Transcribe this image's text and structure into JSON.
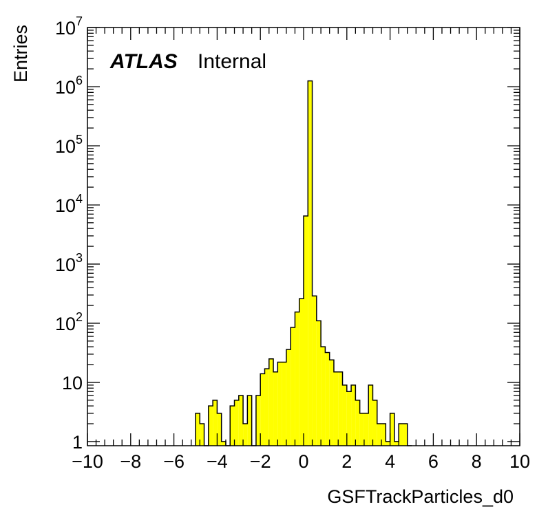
{
  "chart_data": {
    "type": "bar",
    "title": "",
    "label_bold": "ATLAS",
    "label_normal": "Internal",
    "xlabel": "GSFTrackParticles_d0",
    "ylabel": "Entries",
    "xlim": [
      -10,
      10
    ],
    "ylim": [
      0.85,
      10000000
    ],
    "y_scale": "log",
    "grid": false,
    "bin_width": 0.2,
    "fill_color": "#ffff00",
    "line_color": "#000000",
    "x_tick_labels": [
      "−10",
      "−8",
      "−6",
      "−4",
      "−2",
      "0",
      "2",
      "4",
      "6",
      "8",
      "10"
    ],
    "y_tick_labels": [
      {
        "base": "1",
        "exp": ""
      },
      {
        "base": "10",
        "exp": ""
      },
      {
        "base": "10",
        "exp": "2"
      },
      {
        "base": "10",
        "exp": "3"
      },
      {
        "base": "10",
        "exp": "4"
      },
      {
        "base": "10",
        "exp": "5"
      },
      {
        "base": "10",
        "exp": "6"
      },
      {
        "base": "10",
        "exp": "7"
      }
    ],
    "x": [
      -4.9,
      -4.7,
      -4.5,
      -4.3,
      -4.1,
      -3.9,
      -3.7,
      -3.5,
      -3.3,
      -3.1,
      -2.9,
      -2.7,
      -2.5,
      -2.3,
      -2.1,
      -1.9,
      -1.7,
      -1.5,
      -1.3,
      -1.1,
      -0.9,
      -0.7,
      -0.5,
      -0.3,
      -0.1,
      0.1,
      0.3,
      0.5,
      0.7,
      0.9,
      1.1,
      1.3,
      1.5,
      1.7,
      1.9,
      2.1,
      2.3,
      2.5,
      2.7,
      2.9,
      3.1,
      3.3,
      3.5,
      3.7,
      3.9,
      4.1,
      4.3,
      4.5,
      4.7,
      4.9
    ],
    "values": [
      3,
      2,
      0,
      4,
      5,
      3,
      1,
      0,
      4,
      5,
      6,
      2,
      6,
      0,
      6,
      14,
      17,
      25,
      15,
      22,
      22,
      36,
      85,
      155,
      260,
      6500,
      1250000,
      290,
      110,
      40,
      32,
      24,
      15,
      15,
      9,
      7,
      9,
      5,
      3,
      3,
      9,
      5,
      2,
      2,
      1,
      3,
      1,
      2,
      2,
      0
    ]
  }
}
